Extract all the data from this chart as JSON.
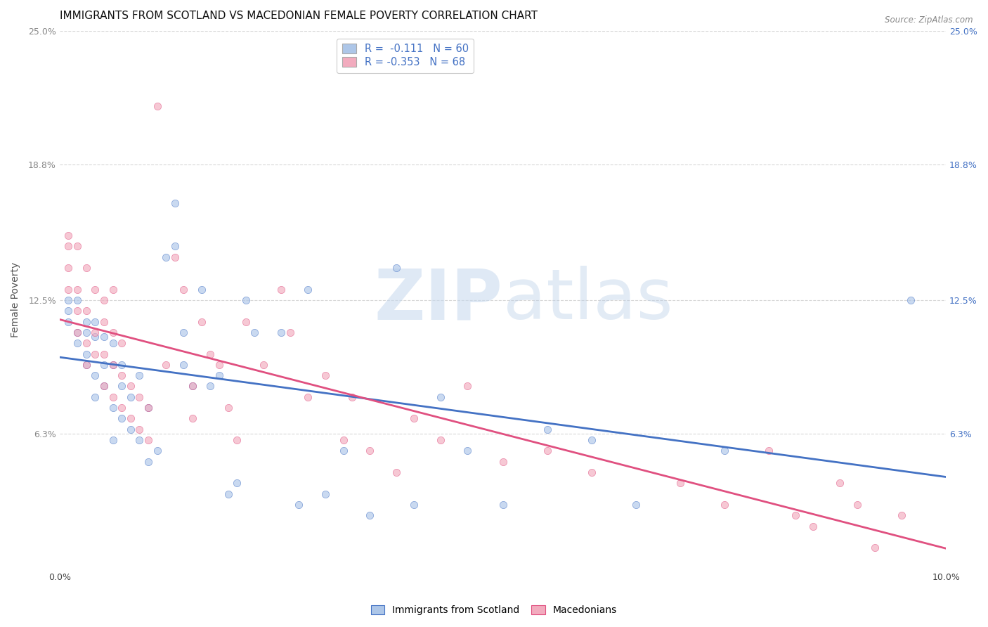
{
  "title": "IMMIGRANTS FROM SCOTLAND VS MACEDONIAN FEMALE POVERTY CORRELATION CHART",
  "source": "Source: ZipAtlas.com",
  "xlabel": "",
  "ylabel": "Female Poverty",
  "xlim": [
    0.0,
    0.1
  ],
  "ylim": [
    0.0,
    0.25
  ],
  "yticks": [
    0.063,
    0.125,
    0.188,
    0.25
  ],
  "ytick_labels": [
    "6.3%",
    "12.5%",
    "18.8%",
    "25.0%"
  ],
  "xticks": [
    0.0,
    0.025,
    0.05,
    0.075,
    0.1
  ],
  "xtick_labels": [
    "0.0%",
    "",
    "",
    "",
    "10.0%"
  ],
  "legend_label1": "R =  -0.111   N = 60",
  "legend_label2": "R = -0.353   N = 68",
  "color_scotland": "#adc6e8",
  "color_macedonia": "#f2abbe",
  "line_color_scotland": "#4472c4",
  "line_color_macedonia": "#e05080",
  "scotland_scatter_x": [
    0.001,
    0.001,
    0.001,
    0.002,
    0.002,
    0.002,
    0.003,
    0.003,
    0.003,
    0.003,
    0.004,
    0.004,
    0.004,
    0.004,
    0.005,
    0.005,
    0.005,
    0.006,
    0.006,
    0.006,
    0.006,
    0.007,
    0.007,
    0.007,
    0.008,
    0.008,
    0.009,
    0.009,
    0.01,
    0.01,
    0.011,
    0.012,
    0.013,
    0.013,
    0.014,
    0.014,
    0.015,
    0.016,
    0.017,
    0.018,
    0.019,
    0.02,
    0.021,
    0.022,
    0.025,
    0.027,
    0.028,
    0.03,
    0.032,
    0.035,
    0.038,
    0.04,
    0.043,
    0.046,
    0.05,
    0.055,
    0.06,
    0.065,
    0.075,
    0.096
  ],
  "scotland_scatter_y": [
    0.115,
    0.12,
    0.125,
    0.105,
    0.11,
    0.125,
    0.095,
    0.1,
    0.11,
    0.115,
    0.08,
    0.09,
    0.108,
    0.115,
    0.085,
    0.095,
    0.108,
    0.06,
    0.075,
    0.095,
    0.105,
    0.07,
    0.085,
    0.095,
    0.065,
    0.08,
    0.06,
    0.09,
    0.05,
    0.075,
    0.055,
    0.145,
    0.15,
    0.17,
    0.095,
    0.11,
    0.085,
    0.13,
    0.085,
    0.09,
    0.035,
    0.04,
    0.125,
    0.11,
    0.11,
    0.03,
    0.13,
    0.035,
    0.055,
    0.025,
    0.14,
    0.03,
    0.08,
    0.055,
    0.03,
    0.065,
    0.06,
    0.03,
    0.055,
    0.125
  ],
  "macedonia_scatter_x": [
    0.001,
    0.001,
    0.001,
    0.001,
    0.002,
    0.002,
    0.002,
    0.002,
    0.003,
    0.003,
    0.003,
    0.003,
    0.004,
    0.004,
    0.004,
    0.005,
    0.005,
    0.005,
    0.005,
    0.006,
    0.006,
    0.006,
    0.006,
    0.007,
    0.007,
    0.007,
    0.008,
    0.008,
    0.009,
    0.009,
    0.01,
    0.01,
    0.011,
    0.012,
    0.013,
    0.014,
    0.015,
    0.015,
    0.016,
    0.017,
    0.018,
    0.019,
    0.02,
    0.021,
    0.023,
    0.025,
    0.026,
    0.028,
    0.03,
    0.032,
    0.033,
    0.035,
    0.038,
    0.04,
    0.043,
    0.046,
    0.05,
    0.055,
    0.06,
    0.07,
    0.075,
    0.08,
    0.083,
    0.085,
    0.088,
    0.09,
    0.092,
    0.095
  ],
  "macedonia_scatter_y": [
    0.13,
    0.14,
    0.15,
    0.155,
    0.11,
    0.12,
    0.13,
    0.15,
    0.095,
    0.105,
    0.12,
    0.14,
    0.1,
    0.11,
    0.13,
    0.085,
    0.1,
    0.115,
    0.125,
    0.08,
    0.095,
    0.11,
    0.13,
    0.075,
    0.09,
    0.105,
    0.07,
    0.085,
    0.065,
    0.08,
    0.06,
    0.075,
    0.215,
    0.095,
    0.145,
    0.13,
    0.07,
    0.085,
    0.115,
    0.1,
    0.095,
    0.075,
    0.06,
    0.115,
    0.095,
    0.13,
    0.11,
    0.08,
    0.09,
    0.06,
    0.08,
    0.055,
    0.045,
    0.07,
    0.06,
    0.085,
    0.05,
    0.055,
    0.045,
    0.04,
    0.03,
    0.055,
    0.025,
    0.02,
    0.04,
    0.03,
    0.01,
    0.025
  ],
  "watermark_zip": "ZIP",
  "watermark_atlas": "atlas",
  "background_color": "#ffffff",
  "grid_color": "#d8d8d8",
  "title_fontsize": 11,
  "axis_label_fontsize": 10,
  "tick_fontsize": 9,
  "scatter_size": 55,
  "scatter_alpha": 0.65
}
